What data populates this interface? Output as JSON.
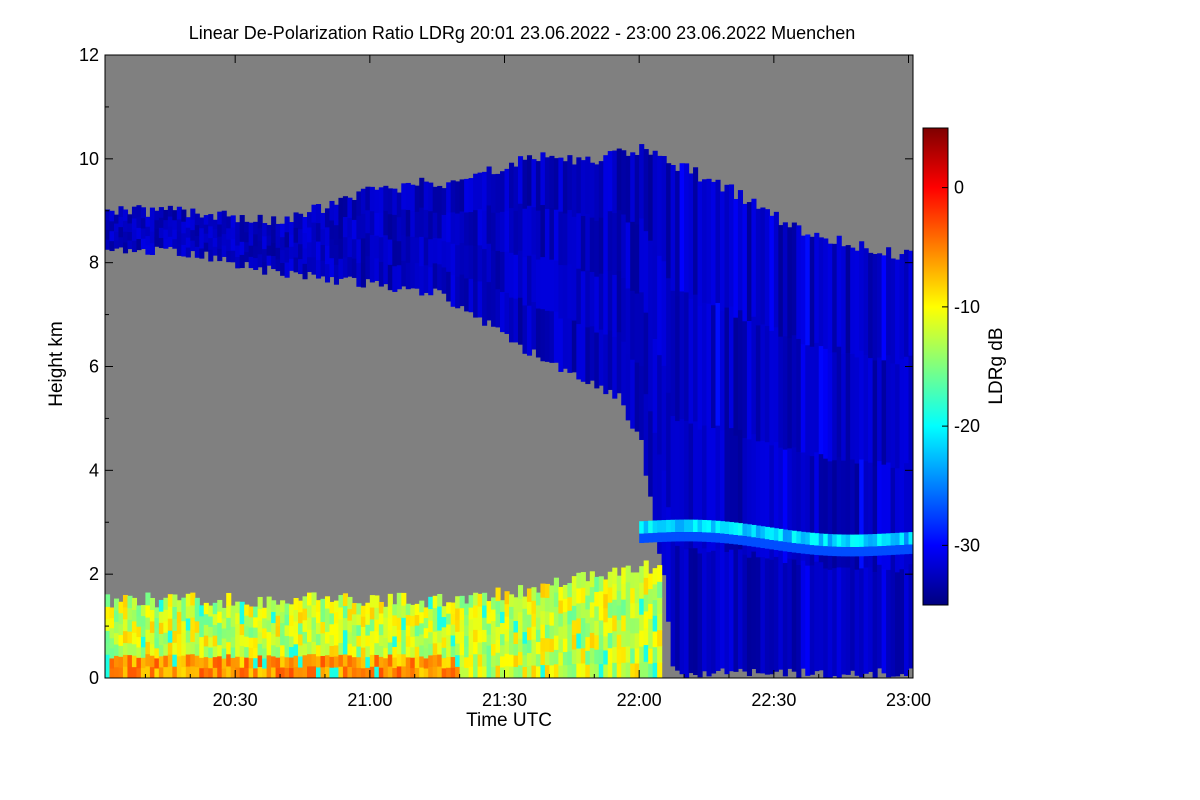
{
  "chart_data": {
    "type": "heatmap",
    "title": "Linear De-Polarization Ratio LDRg   20:01 23.06.2022 - 23:00 23.06.2022 Muenchen",
    "xlabel": "Time UTC",
    "ylabel": "Height km",
    "x_ticks": [
      "20:30",
      "21:00",
      "21:30",
      "22:00",
      "22:30",
      "23:00"
    ],
    "x_tick_minutes": [
      30,
      60,
      90,
      120,
      150,
      180
    ],
    "xlim_minutes": [
      1,
      181
    ],
    "y_ticks": [
      "0",
      "2",
      "4",
      "6",
      "8",
      "10",
      "12"
    ],
    "y_tick_values": [
      0,
      2,
      4,
      6,
      8,
      10,
      12
    ],
    "ylim": [
      0,
      12
    ],
    "colorbar": {
      "label": "LDRg dB",
      "ticks": [
        "0",
        "-10",
        "-20",
        "-30"
      ],
      "tick_values": [
        0,
        -10,
        -20,
        -30
      ],
      "range": [
        -35,
        5
      ],
      "colormap": "jet"
    },
    "no_data_color": "#808080",
    "regions": [
      {
        "name": "cirrus",
        "ldr_db": -31,
        "start_min": 1,
        "end_min": 181,
        "base_km_at_start": 8.3,
        "top_km_at_start": 9.0,
        "top_km_max": 10.2,
        "base_km_at_end": 0.1
      },
      {
        "name": "boundary layer aerosol",
        "ldr_db": -11,
        "start_min": 1,
        "end_min": 125,
        "base_km": 0,
        "top_km": 1.5
      },
      {
        "name": "melting layer band",
        "ldr_db": -22,
        "start_min": 120,
        "end_min": 181,
        "height_km": 2.9
      }
    ]
  }
}
